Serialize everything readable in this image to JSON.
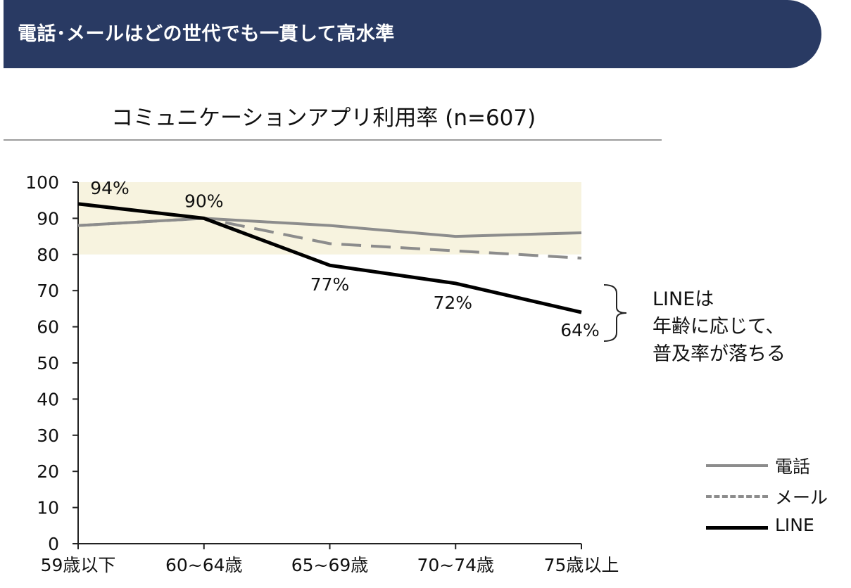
{
  "banner": {
    "title": "電話･メールはどの世代でも一貫して高水準"
  },
  "annotation": {
    "text": "LINEは\n年齢に応じて、\n普及率が落ちる"
  },
  "chart_data": {
    "type": "line",
    "title": "コミュニケーションアプリ利用率 (n=607)",
    "categories": [
      "59歳以下",
      "60~64歳",
      "65~69歳",
      "70~74歳",
      "75歳以上"
    ],
    "ylim": [
      0,
      100
    ],
    "yticks": [
      0,
      10,
      20,
      30,
      40,
      50,
      60,
      70,
      80,
      90,
      100
    ],
    "highlight_band": [
      80,
      100
    ],
    "grid": false,
    "legend_position": "bottom-right",
    "series": [
      {
        "name": "電話",
        "values": [
          88,
          90,
          88,
          85,
          86
        ],
        "color": "#8c8c8c",
        "style": "solid"
      },
      {
        "name": "メール",
        "values": [
          88,
          90,
          83,
          81,
          79
        ],
        "color": "#8c8c8c",
        "style": "dashed"
      },
      {
        "name": "LINE",
        "values": [
          94,
          90,
          77,
          72,
          64
        ],
        "color": "#000000",
        "style": "solid",
        "labels": [
          "94%",
          "90%",
          "77%",
          "72%",
          "64%"
        ]
      }
    ],
    "colors": {
      "band": "#f7f3df",
      "axis": "#222222"
    }
  }
}
